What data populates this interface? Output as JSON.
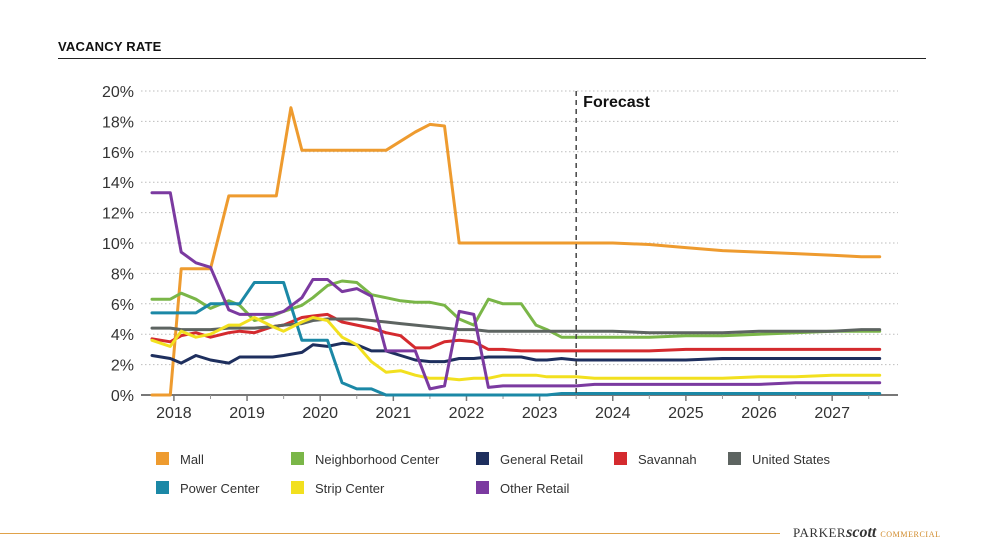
{
  "header": {
    "title": "VACANCY RATE"
  },
  "brand": {
    "part1": "PARKER",
    "part2": "scott",
    "part3": "COMMERCIAL"
  },
  "chart_data": {
    "type": "line",
    "title": "",
    "xlabel": "",
    "ylabel": "",
    "xlim": [
      2017.55,
      2027.9
    ],
    "ylim": [
      0,
      20
    ],
    "x_ticks": [
      2018,
      2019,
      2020,
      2021,
      2022,
      2023,
      2024,
      2025,
      2026,
      2027
    ],
    "x_tick_labels": [
      "2018",
      "2019",
      "2020",
      "2021",
      "2022",
      "2023",
      "2024",
      "2025",
      "2026",
      "2027"
    ],
    "y_ticks": [
      0,
      2,
      4,
      6,
      8,
      10,
      12,
      14,
      16,
      18,
      20
    ],
    "y_tick_labels": [
      "0%",
      "2%",
      "4%",
      "6%",
      "8%",
      "10%",
      "12%",
      "14%",
      "16%",
      "18%",
      "20%"
    ],
    "grid": "horizontal dotted",
    "forecast": {
      "x": 2023.5,
      "label": "Forecast"
    },
    "legend_position": "bottom",
    "series": [
      {
        "name": "Mall",
        "color": "#ee9b2f",
        "x": [
          2017.7,
          2017.8,
          2017.95,
          2018.1,
          2018.25,
          2018.4,
          2018.5,
          2018.75,
          2018.9,
          2019.1,
          2019.25,
          2019.4,
          2019.6,
          2019.75,
          2019.9,
          2020.1,
          2020.3,
          2020.5,
          2020.7,
          2020.9,
          2021.1,
          2021.3,
          2021.5,
          2021.7,
          2021.9,
          2022.0,
          2022.2,
          2022.5,
          2022.8,
          2023.1,
          2023.4,
          2023.75,
          2024.0,
          2024.5,
          2025.0,
          2025.5,
          2026.0,
          2026.5,
          2027.0,
          2027.4,
          2027.65
        ],
        "y": [
          0.0,
          0.0,
          0.0,
          8.3,
          8.3,
          8.3,
          8.3,
          13.1,
          13.1,
          13.1,
          13.1,
          13.1,
          18.9,
          16.1,
          16.1,
          16.1,
          16.1,
          16.1,
          16.1,
          16.1,
          16.7,
          17.3,
          17.8,
          17.7,
          10.0,
          10.0,
          10.0,
          10.0,
          10.0,
          10.0,
          10.0,
          10.0,
          10.0,
          9.9,
          9.7,
          9.5,
          9.4,
          9.3,
          9.2,
          9.1,
          9.1
        ]
      },
      {
        "name": "Neighborhood Center",
        "color": "#7ab648",
        "x": [
          2017.7,
          2017.95,
          2018.1,
          2018.3,
          2018.5,
          2018.75,
          2018.9,
          2019.1,
          2019.35,
          2019.5,
          2019.75,
          2019.9,
          2020.1,
          2020.3,
          2020.5,
          2020.7,
          2020.9,
          2021.1,
          2021.3,
          2021.5,
          2021.7,
          2021.9,
          2022.1,
          2022.3,
          2022.5,
          2022.75,
          2022.95,
          2023.1,
          2023.3,
          2023.5,
          2023.75,
          2024.0,
          2024.5,
          2025.0,
          2025.5,
          2026.0,
          2026.5,
          2027.0,
          2027.4,
          2027.65
        ],
        "y": [
          6.3,
          6.3,
          6.7,
          6.3,
          5.7,
          6.2,
          5.9,
          4.9,
          5.2,
          5.5,
          5.9,
          6.4,
          7.2,
          7.5,
          7.4,
          6.6,
          6.4,
          6.2,
          6.1,
          6.1,
          5.9,
          5.0,
          4.6,
          6.3,
          6.0,
          6.0,
          4.6,
          4.3,
          3.8,
          3.8,
          3.8,
          3.8,
          3.8,
          3.9,
          3.9,
          4.0,
          4.1,
          4.2,
          4.2,
          4.2
        ]
      },
      {
        "name": "General Retail",
        "color": "#1e2f5e",
        "x": [
          2017.7,
          2017.95,
          2018.1,
          2018.3,
          2018.5,
          2018.75,
          2018.9,
          2019.1,
          2019.35,
          2019.5,
          2019.75,
          2019.9,
          2020.1,
          2020.3,
          2020.5,
          2020.7,
          2020.9,
          2021.1,
          2021.3,
          2021.5,
          2021.7,
          2021.9,
          2022.1,
          2022.3,
          2022.5,
          2022.75,
          2022.95,
          2023.1,
          2023.3,
          2023.5,
          2023.75,
          2024.0,
          2024.5,
          2025.0,
          2025.5,
          2026.0,
          2026.5,
          2027.0,
          2027.4,
          2027.65
        ],
        "y": [
          2.6,
          2.4,
          2.1,
          2.6,
          2.3,
          2.1,
          2.5,
          2.5,
          2.5,
          2.6,
          2.8,
          3.3,
          3.2,
          3.4,
          3.3,
          2.9,
          2.9,
          2.6,
          2.3,
          2.2,
          2.2,
          2.4,
          2.4,
          2.5,
          2.5,
          2.5,
          2.3,
          2.3,
          2.4,
          2.3,
          2.3,
          2.3,
          2.3,
          2.3,
          2.4,
          2.4,
          2.4,
          2.4,
          2.4,
          2.4
        ]
      },
      {
        "name": "Savannah",
        "color": "#d42a2e",
        "x": [
          2017.7,
          2017.95,
          2018.1,
          2018.3,
          2018.5,
          2018.75,
          2018.9,
          2019.1,
          2019.35,
          2019.5,
          2019.75,
          2019.9,
          2020.1,
          2020.3,
          2020.5,
          2020.7,
          2020.9,
          2021.1,
          2021.3,
          2021.5,
          2021.7,
          2021.9,
          2022.1,
          2022.3,
          2022.5,
          2022.75,
          2022.95,
          2023.1,
          2023.3,
          2023.5,
          2023.75,
          2024.0,
          2024.5,
          2025.0,
          2025.5,
          2026.0,
          2026.5,
          2027.0,
          2027.4,
          2027.65
        ],
        "y": [
          3.7,
          3.5,
          3.9,
          4.1,
          3.8,
          4.1,
          4.2,
          4.1,
          4.5,
          4.6,
          5.1,
          5.2,
          5.3,
          4.8,
          4.6,
          4.4,
          4.1,
          3.9,
          3.1,
          3.1,
          3.5,
          3.6,
          3.5,
          3.0,
          3.0,
          2.9,
          2.9,
          2.9,
          2.9,
          2.9,
          2.9,
          2.9,
          2.9,
          3.0,
          3.0,
          3.0,
          3.0,
          3.0,
          3.0,
          3.0
        ]
      },
      {
        "name": "United States",
        "color": "#5d6461",
        "x": [
          2017.7,
          2017.95,
          2018.1,
          2018.3,
          2018.5,
          2018.75,
          2018.9,
          2019.1,
          2019.35,
          2019.5,
          2019.75,
          2019.9,
          2020.1,
          2020.3,
          2020.5,
          2020.7,
          2020.9,
          2021.1,
          2021.3,
          2021.5,
          2021.7,
          2021.9,
          2022.1,
          2022.3,
          2022.5,
          2022.75,
          2022.95,
          2023.1,
          2023.3,
          2023.5,
          2023.75,
          2024.0,
          2024.5,
          2025.0,
          2025.5,
          2026.0,
          2026.5,
          2027.0,
          2027.4,
          2027.65
        ],
        "y": [
          4.4,
          4.4,
          4.3,
          4.3,
          4.3,
          4.4,
          4.4,
          4.4,
          4.5,
          4.6,
          4.7,
          4.9,
          5.0,
          5.0,
          5.0,
          4.9,
          4.8,
          4.7,
          4.6,
          4.5,
          4.4,
          4.3,
          4.3,
          4.2,
          4.2,
          4.2,
          4.2,
          4.2,
          4.2,
          4.2,
          4.2,
          4.2,
          4.1,
          4.1,
          4.1,
          4.2,
          4.2,
          4.2,
          4.3,
          4.3
        ]
      },
      {
        "name": "Power Center",
        "color": "#1b88a6",
        "x": [
          2017.7,
          2017.95,
          2018.1,
          2018.3,
          2018.5,
          2018.75,
          2018.9,
          2019.1,
          2019.35,
          2019.5,
          2019.75,
          2019.9,
          2020.1,
          2020.3,
          2020.5,
          2020.7,
          2020.9,
          2021.1,
          2021.3,
          2021.5,
          2021.7,
          2021.9,
          2022.1,
          2022.3,
          2022.5,
          2022.75,
          2022.95,
          2023.1,
          2023.3,
          2023.5,
          2023.75,
          2024.0,
          2024.5,
          2025.0,
          2025.5,
          2026.0,
          2026.5,
          2027.0,
          2027.4,
          2027.65
        ],
        "y": [
          5.4,
          5.4,
          5.4,
          5.4,
          6.0,
          6.0,
          6.0,
          7.4,
          7.4,
          7.4,
          3.6,
          3.6,
          3.6,
          0.8,
          0.4,
          0.4,
          0.0,
          0.0,
          0.0,
          0.0,
          0.0,
          0.0,
          0.0,
          0.0,
          0.0,
          0.0,
          0.0,
          0.0,
          0.1,
          0.1,
          0.1,
          0.1,
          0.1,
          0.1,
          0.1,
          0.1,
          0.1,
          0.1,
          0.1,
          0.1
        ]
      },
      {
        "name": "Strip Center",
        "color": "#f2e01f",
        "x": [
          2017.7,
          2017.95,
          2018.1,
          2018.3,
          2018.5,
          2018.75,
          2018.9,
          2019.1,
          2019.35,
          2019.5,
          2019.75,
          2019.9,
          2020.1,
          2020.3,
          2020.5,
          2020.7,
          2020.9,
          2021.1,
          2021.3,
          2021.5,
          2021.7,
          2021.9,
          2022.1,
          2022.3,
          2022.5,
          2022.75,
          2022.95,
          2023.1,
          2023.3,
          2023.5,
          2023.75,
          2024.0,
          2024.5,
          2025.0,
          2025.5,
          2026.0,
          2026.5,
          2027.0,
          2027.4,
          2027.65
        ],
        "y": [
          3.6,
          3.2,
          4.2,
          3.8,
          4.0,
          4.6,
          4.6,
          5.1,
          4.5,
          4.2,
          4.8,
          5.1,
          4.9,
          3.8,
          3.3,
          2.2,
          1.5,
          1.6,
          1.3,
          1.1,
          1.1,
          1.0,
          1.1,
          1.1,
          1.3,
          1.3,
          1.3,
          1.2,
          1.2,
          1.2,
          1.1,
          1.1,
          1.1,
          1.1,
          1.1,
          1.2,
          1.2,
          1.3,
          1.3,
          1.3
        ]
      },
      {
        "name": "Other Retail",
        "color": "#7b3aa0",
        "x": [
          2017.7,
          2017.95,
          2018.1,
          2018.3,
          2018.5,
          2018.75,
          2018.9,
          2019.1,
          2019.35,
          2019.5,
          2019.75,
          2019.9,
          2020.1,
          2020.3,
          2020.5,
          2020.7,
          2020.9,
          2021.1,
          2021.3,
          2021.5,
          2021.7,
          2021.9,
          2022.1,
          2022.3,
          2022.5,
          2022.75,
          2022.95,
          2023.1,
          2023.3,
          2023.5,
          2023.75,
          2024.0,
          2024.5,
          2025.0,
          2025.5,
          2026.0,
          2026.5,
          2027.0,
          2027.4,
          2027.65
        ],
        "y": [
          13.3,
          13.3,
          9.4,
          8.7,
          8.4,
          5.6,
          5.3,
          5.3,
          5.3,
          5.5,
          6.4,
          7.6,
          7.6,
          6.8,
          7.0,
          6.5,
          2.9,
          2.9,
          2.9,
          0.4,
          0.6,
          5.5,
          5.3,
          0.5,
          0.6,
          0.6,
          0.6,
          0.6,
          0.6,
          0.6,
          0.7,
          0.7,
          0.7,
          0.7,
          0.7,
          0.7,
          0.8,
          0.8,
          0.8,
          0.8
        ]
      }
    ]
  }
}
